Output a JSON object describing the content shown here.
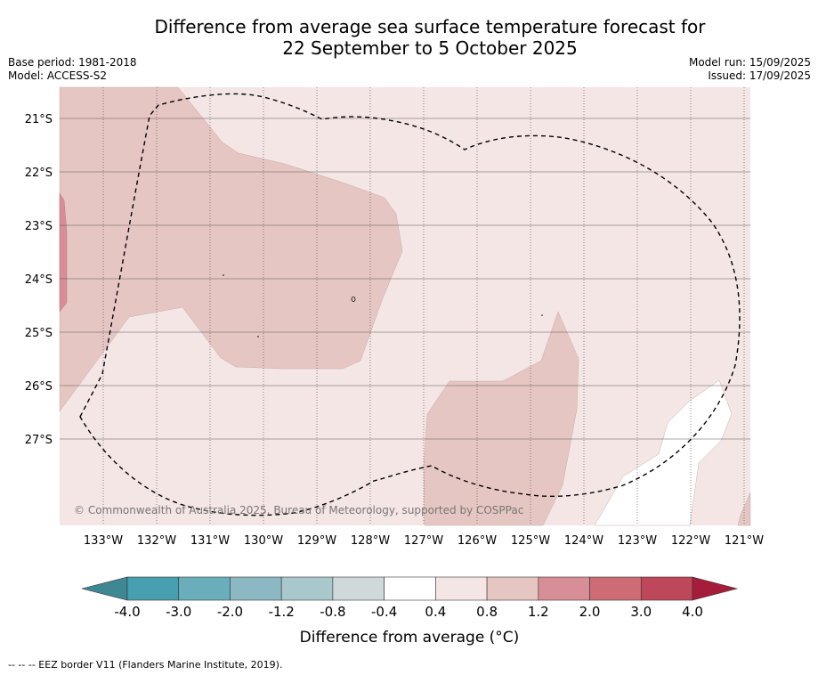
{
  "title_line1": "Difference from average sea surface temperature forecast for",
  "title_line2": "22 September to 5 October 2025",
  "meta": {
    "base_period": "Base period: 1981-2018",
    "model": "Model: ACCESS-S2",
    "model_run": "Model run: 15/09/2025",
    "issued": "Issued: 17/09/2025"
  },
  "map": {
    "lat_ticks": [
      "21°S",
      "22°S",
      "23°S",
      "24°S",
      "25°S",
      "26°S",
      "27°S"
    ],
    "lon_ticks": [
      "133°W",
      "132°W",
      "131°W",
      "130°W",
      "129°W",
      "128°W",
      "127°W",
      "126°W",
      "125°W",
      "124°W",
      "123°W",
      "122°W",
      "121°W"
    ],
    "watermark": "© Commonwealth of Australia 2025, Bureau of Meteorology, supported by COSPPac",
    "colors": {
      "band_0_4_to_0_8": "#f4e6e4",
      "band_0_8_to_1_2": "#e6c6c2",
      "band_1_2_to_2_0": "#d88e96",
      "band_neutral": "#ffffff"
    }
  },
  "colorbar": {
    "ticks": [
      "-4.0",
      "-3.0",
      "-2.0",
      "-1.2",
      "-0.8",
      "-0.4",
      "0.4",
      "0.8",
      "1.2",
      "2.0",
      "3.0",
      "4.0"
    ],
    "colors": [
      "#3e8893",
      "#479faf",
      "#6aaebb",
      "#8cb8c3",
      "#a9c8cc",
      "#cfd9da",
      "#ffffff",
      "#f4e6e4",
      "#e6c6c2",
      "#d88e96",
      "#cd6c75",
      "#be4759",
      "#a51d3a"
    ],
    "label": "Difference from average (°C)"
  },
  "footnote": "--  --  -- EEZ border V11 (Flanders Marine Institute, 2019)."
}
